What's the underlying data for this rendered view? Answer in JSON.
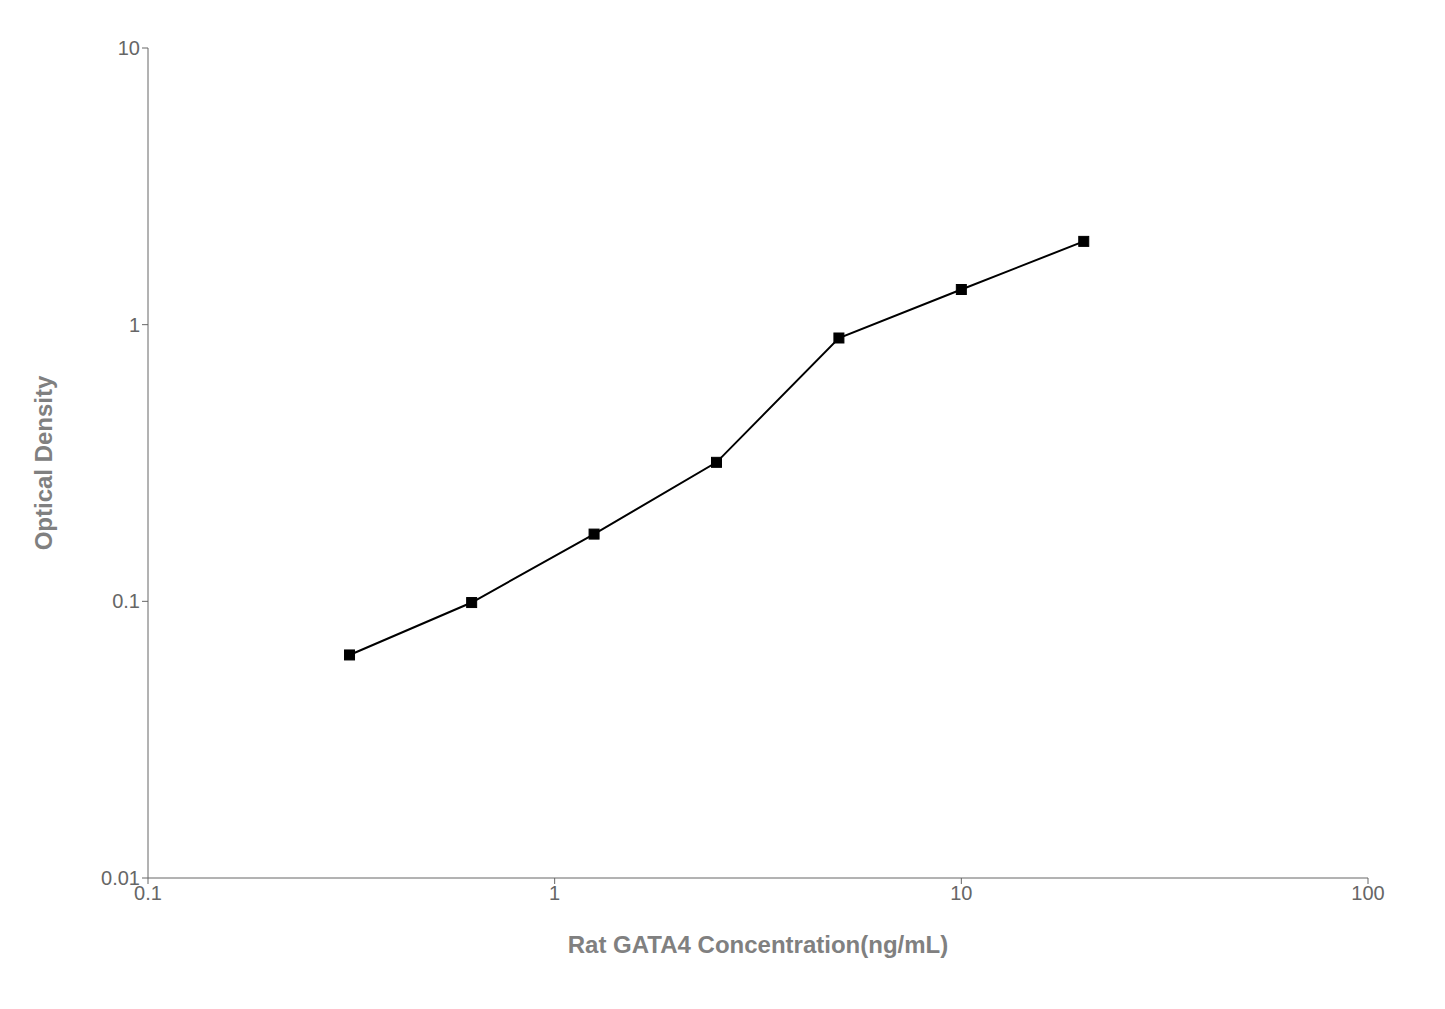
{
  "chart_data": {
    "type": "line",
    "x": [
      0.313,
      0.625,
      1.25,
      2.5,
      5.0,
      10.0,
      20.0
    ],
    "values": [
      0.064,
      0.099,
      0.175,
      0.318,
      0.895,
      1.34,
      2.0
    ],
    "xlabel": "Rat GATA4 Concentration(ng/mL)",
    "ylabel": "Optical Density",
    "xlim": [
      0.1,
      100
    ],
    "ylim": [
      0.01,
      10
    ],
    "xticks": [
      0.1,
      1,
      10,
      100
    ],
    "yticks": [
      0.01,
      0.1,
      1,
      10
    ],
    "log": true,
    "color": "#000000",
    "marker": "square",
    "grid": false
  }
}
